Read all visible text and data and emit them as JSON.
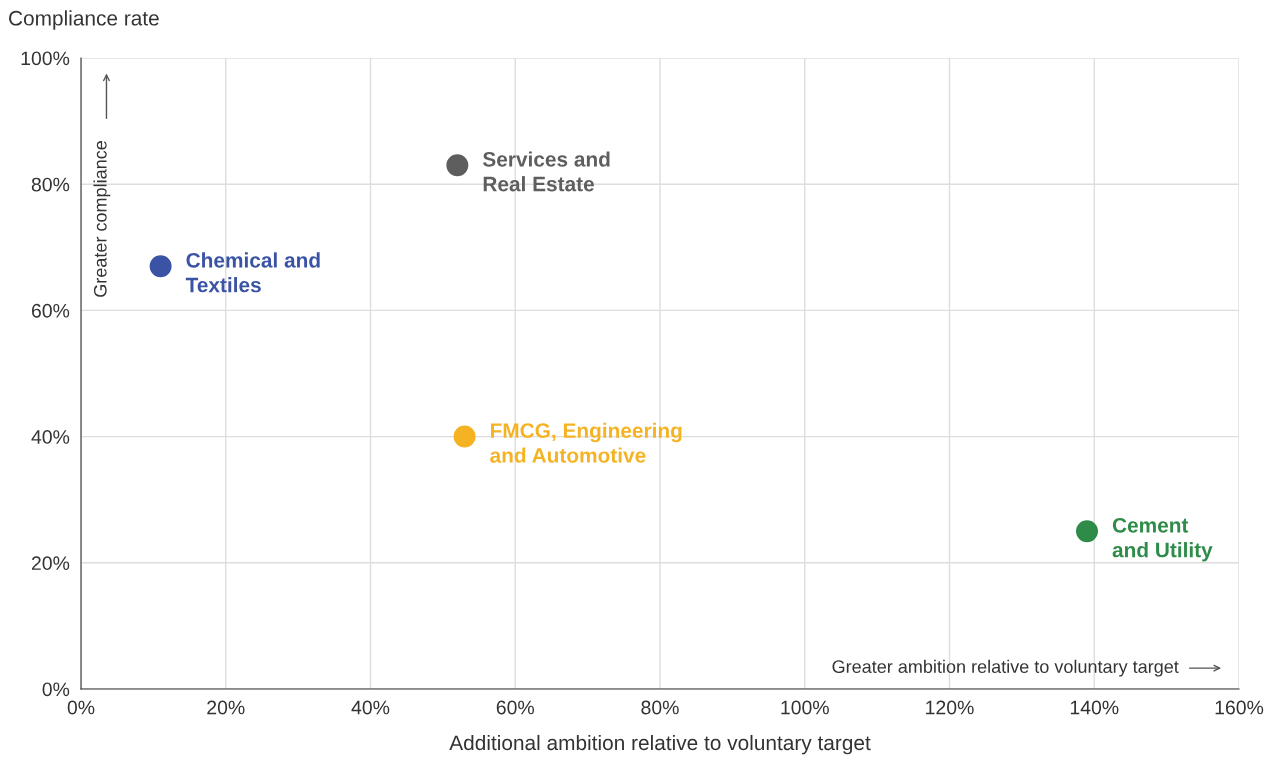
{
  "chart_data": {
    "type": "scatter",
    "ylabel": "Compliance rate",
    "xlabel": "Additional ambition relative to voluntary target",
    "xlim": [
      0,
      160
    ],
    "ylim": [
      0,
      100
    ],
    "xticks": [
      {
        "value": 0,
        "label": "0%"
      },
      {
        "value": 20,
        "label": "20%"
      },
      {
        "value": 40,
        "label": "40%"
      },
      {
        "value": 60,
        "label": "60%"
      },
      {
        "value": 80,
        "label": "80%"
      },
      {
        "value": 100,
        "label": "100%"
      },
      {
        "value": 120,
        "label": "120%"
      },
      {
        "value": 140,
        "label": "140%"
      },
      {
        "value": 160,
        "label": "160%"
      }
    ],
    "yticks": [
      {
        "value": 0,
        "label": "0%"
      },
      {
        "value": 20,
        "label": "20%"
      },
      {
        "value": 40,
        "label": "40%"
      },
      {
        "value": 60,
        "label": "60%"
      },
      {
        "value": 80,
        "label": "80%"
      },
      {
        "value": 100,
        "label": "100%"
      }
    ],
    "grid": true,
    "marker": "circle",
    "series": [
      {
        "name": "Chemical and\nTextiles",
        "color": "#3a53a4",
        "x": [
          11
        ],
        "values": [
          67
        ]
      },
      {
        "name": "Services and\nReal Estate",
        "color": "#5e5e5e",
        "x": [
          52
        ],
        "values": [
          83
        ]
      },
      {
        "name": "FMCG, Engineering\nand Automotive",
        "color": "#f5b324",
        "x": [
          53
        ],
        "values": [
          40
        ]
      },
      {
        "name": "Cement\nand Utility",
        "color": "#2e8b48",
        "x": [
          139
        ],
        "values": [
          25
        ]
      }
    ],
    "annotations": [
      "Greater compliance",
      "Greater ambition relative to voluntary target"
    ]
  }
}
